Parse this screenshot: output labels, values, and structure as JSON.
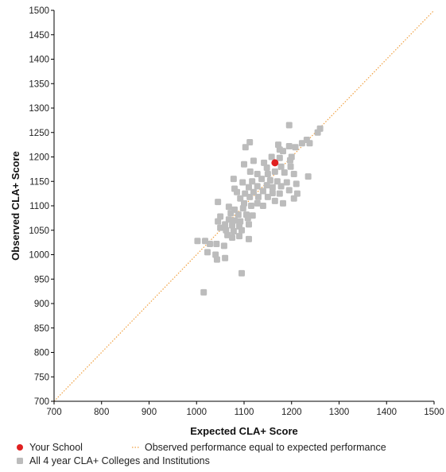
{
  "chart_data": {
    "type": "scatter",
    "xlabel": "Expected CLA+ Score",
    "ylabel": "Observed CLA+ Score",
    "xlim": [
      700,
      1500
    ],
    "ylim": [
      700,
      1500
    ],
    "x_ticks": [
      "700",
      "800",
      "900",
      "1000",
      "1100",
      "1200",
      "1300",
      "1400",
      "1500"
    ],
    "y_ticks": [
      "700",
      "750",
      "800",
      "850",
      "900",
      "950",
      "1000",
      "1050",
      "1100",
      "1150",
      "1200",
      "1250",
      "1300",
      "1350",
      "1400",
      "1450",
      "1500"
    ],
    "grid": false,
    "legend_position": "bottom",
    "reference_line": {
      "name": "Observed performance equal to expected performance",
      "from": [
        700,
        700
      ],
      "to": [
        1500,
        1500
      ],
      "color": "#f0a040",
      "style": "dotted"
    },
    "series": [
      {
        "name": "Your School",
        "color": "#e02020",
        "points": [
          [
            1165,
            1188
          ]
        ]
      },
      {
        "name": "All 4 year CLA+ Colleges and Institutions",
        "color": "#bcbcbc",
        "points": [
          [
            1195,
            1265
          ],
          [
            1260,
            1258
          ],
          [
            1255,
            1250
          ],
          [
            1232,
            1235
          ],
          [
            1222,
            1228
          ],
          [
            1238,
            1228
          ],
          [
            1208,
            1220
          ],
          [
            1195,
            1222
          ],
          [
            1172,
            1225
          ],
          [
            1112,
            1230
          ],
          [
            1103,
            1220
          ],
          [
            1175,
            1215
          ],
          [
            1182,
            1212
          ],
          [
            1200,
            1200
          ],
          [
            1197,
            1193
          ],
          [
            1175,
            1198
          ],
          [
            1158,
            1200
          ],
          [
            1120,
            1192
          ],
          [
            1100,
            1185
          ],
          [
            1142,
            1188
          ],
          [
            1148,
            1178
          ],
          [
            1178,
            1180
          ],
          [
            1198,
            1180
          ],
          [
            1113,
            1170
          ],
          [
            1128,
            1165
          ],
          [
            1150,
            1165
          ],
          [
            1165,
            1170
          ],
          [
            1185,
            1168
          ],
          [
            1205,
            1165
          ],
          [
            1235,
            1160
          ],
          [
            1078,
            1155
          ],
          [
            1097,
            1148
          ],
          [
            1117,
            1150
          ],
          [
            1137,
            1155
          ],
          [
            1155,
            1152
          ],
          [
            1170,
            1150
          ],
          [
            1190,
            1148
          ],
          [
            1210,
            1145
          ],
          [
            1148,
            1142
          ],
          [
            1128,
            1140
          ],
          [
            1080,
            1135
          ],
          [
            1110,
            1138
          ],
          [
            1160,
            1138
          ],
          [
            1178,
            1140
          ],
          [
            1195,
            1132
          ],
          [
            1212,
            1125
          ],
          [
            1205,
            1115
          ],
          [
            1085,
            1128
          ],
          [
            1102,
            1125
          ],
          [
            1120,
            1128
          ],
          [
            1140,
            1130
          ],
          [
            1160,
            1126
          ],
          [
            1175,
            1125
          ],
          [
            1092,
            1115
          ],
          [
            1100,
            1105
          ],
          [
            1112,
            1118
          ],
          [
            1130,
            1118
          ],
          [
            1150,
            1118
          ],
          [
            1165,
            1110
          ],
          [
            1182,
            1105
          ],
          [
            1045,
            1108
          ],
          [
            1068,
            1098
          ],
          [
            1080,
            1092
          ],
          [
            1098,
            1095
          ],
          [
            1115,
            1100
          ],
          [
            1128,
            1105
          ],
          [
            1140,
            1100
          ],
          [
            1072,
            1085
          ],
          [
            1088,
            1082
          ],
          [
            1105,
            1082
          ],
          [
            1118,
            1080
          ],
          [
            1050,
            1078
          ],
          [
            1068,
            1072
          ],
          [
            1080,
            1070
          ],
          [
            1092,
            1068
          ],
          [
            1108,
            1075
          ],
          [
            1045,
            1068
          ],
          [
            1060,
            1062
          ],
          [
            1075,
            1060
          ],
          [
            1090,
            1058
          ],
          [
            1110,
            1062
          ],
          [
            1050,
            1055
          ],
          [
            1062,
            1050
          ],
          [
            1078,
            1048
          ],
          [
            1095,
            1050
          ],
          [
            1065,
            1040
          ],
          [
            1075,
            1035
          ],
          [
            1090,
            1038
          ],
          [
            1110,
            1032
          ],
          [
            1002,
            1028
          ],
          [
            1018,
            1028
          ],
          [
            1028,
            1022
          ],
          [
            1042,
            1022
          ],
          [
            1058,
            1018
          ],
          [
            1023,
            1005
          ],
          [
            1040,
            1000
          ],
          [
            1060,
            993
          ],
          [
            1043,
            990
          ],
          [
            1095,
            962
          ],
          [
            1015,
            923
          ]
        ]
      }
    ]
  }
}
